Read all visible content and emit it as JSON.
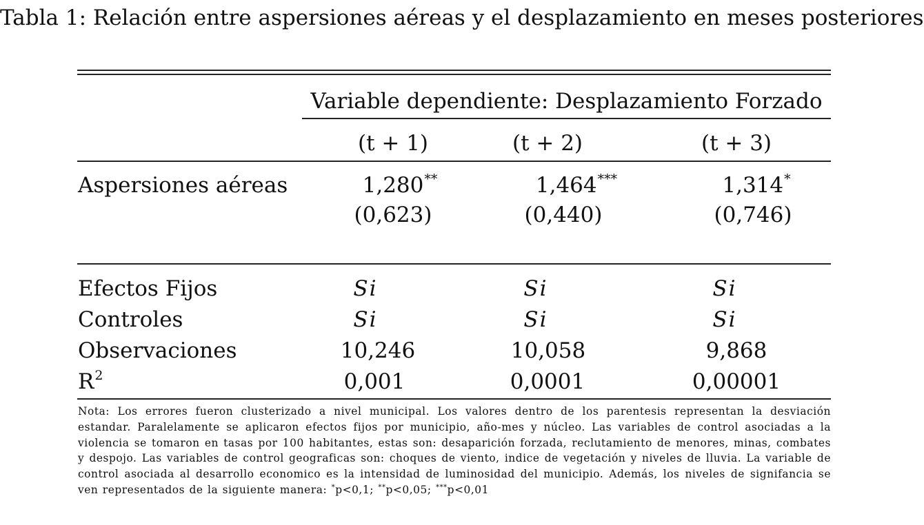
{
  "caption": "Tabla 1: Relación entre aspersiones aéreas y el desplazamiento en meses posteriores",
  "header": {
    "dependent_variable": "Variable dependiente: Desplazamiento Forzado",
    "columns": [
      "(t + 1)",
      "(t + 2)",
      "(t + 3)"
    ]
  },
  "rows": {
    "aspersiones": {
      "label": "Aspersiones aéreas",
      "coefs": [
        "1,280",
        "1,464",
        "1,314"
      ],
      "stars": [
        "**",
        "***",
        "*"
      ],
      "ses": [
        "(0,623)",
        "(0,440)",
        "(0,746)"
      ]
    },
    "efectos": {
      "label": "Efectos Fijos",
      "values": [
        "Si",
        "Si",
        "Si"
      ]
    },
    "controles": {
      "label": "Controles",
      "values": [
        "Si",
        "Si",
        "Si"
      ]
    },
    "observaciones": {
      "label": "Observaciones",
      "values": [
        "10,246",
        "10,058",
        "9,868"
      ]
    },
    "r2": {
      "label": "R",
      "label_sup": "2",
      "values": [
        "0,001",
        "0,0001",
        "0,00001"
      ]
    }
  },
  "note": {
    "text": "Nota: Los errores fueron clusterizado a nivel municipal. Los valores dentro de los parentesis representan la desviación estandar. Paralelamente se aplicaron efectos fijos por municipio, año-mes y núcleo. Las variables de control asociadas a la violencia se tomaron en tasas por 100 habitantes, estas son: desaparición forzada, reclutamiento de menores, minas, combates y despojo. Las variables de control geograficas son: choques de viento, indice de vegetación y niveles de lluvia. La variable de control asociada al desarrollo economico es la intensidad de luminosidad del municipio. Además, los niveles de signifancia se ven representados de la siguiente manera:",
    "sig1_mark": "*",
    "sig1_text": "p<0,1;",
    "sig2_mark": "**",
    "sig2_text": "p<0,05;",
    "sig3_mark": "***",
    "sig3_text": "p<0,01"
  }
}
